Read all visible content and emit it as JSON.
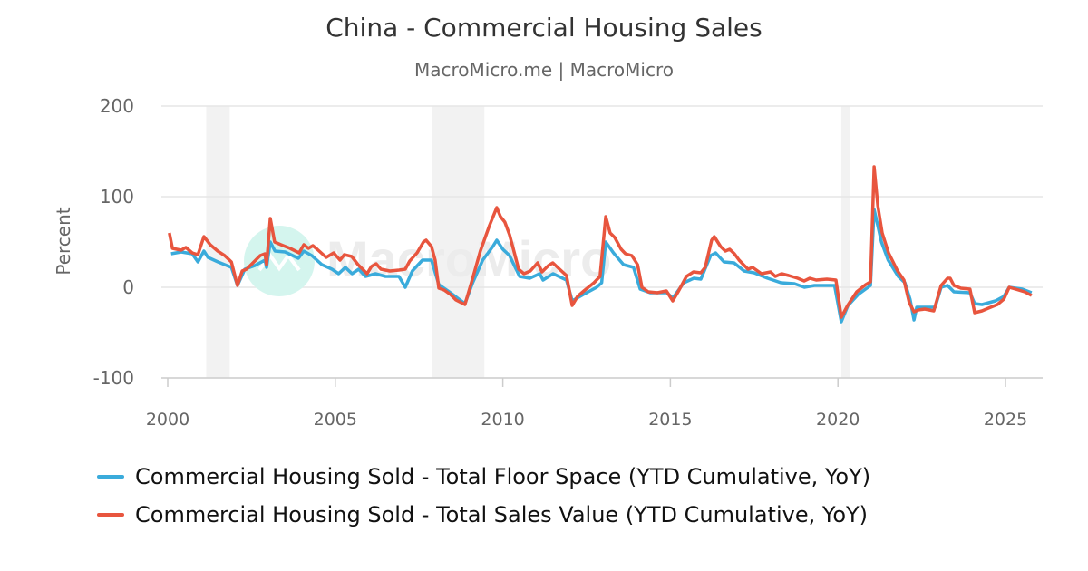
{
  "chart_data": {
    "type": "line",
    "title": "China - Commercial Housing Sales",
    "subtitle": "MacroMicro.me | MacroMicro",
    "ylabel": "Percent",
    "xlabel": "",
    "xlim": [
      2000,
      2026
    ],
    "ylim": [
      -100,
      200
    ],
    "yticks": [
      200,
      100,
      0,
      -100
    ],
    "xticks": [
      2000,
      2005,
      2010,
      2015,
      2020,
      2025
    ],
    "grid": "horizontal",
    "legend_position": "bottom",
    "shaded_periods": [
      [
        2001.15,
        2001.85
      ],
      [
        2007.9,
        2009.45
      ],
      [
        2020.1,
        2020.35
      ]
    ],
    "watermark": "MacroMicro",
    "series": [
      {
        "name": "Commercial Housing Sold - Total Floor Space (YTD Cumulative, YoY)",
        "color": "#3aabdb",
        "points": [
          [
            2000.1,
            37
          ],
          [
            2000.4,
            39
          ],
          [
            2000.73,
            37
          ],
          [
            2000.9,
            28
          ],
          [
            2001.08,
            40
          ],
          [
            2001.2,
            33
          ],
          [
            2001.5,
            28
          ],
          [
            2001.7,
            25
          ],
          [
            2001.9,
            22
          ],
          [
            2002.08,
            2
          ],
          [
            2002.3,
            20
          ],
          [
            2002.6,
            24
          ],
          [
            2002.9,
            30
          ],
          [
            2002.95,
            22
          ],
          [
            2003.06,
            50
          ],
          [
            2003.2,
            40
          ],
          [
            2003.5,
            39
          ],
          [
            2003.9,
            32
          ],
          [
            2004.06,
            40
          ],
          [
            2004.3,
            35
          ],
          [
            2004.6,
            25
          ],
          [
            2004.9,
            20
          ],
          [
            2005.1,
            15
          ],
          [
            2005.3,
            22
          ],
          [
            2005.5,
            15
          ],
          [
            2005.7,
            20
          ],
          [
            2005.9,
            12
          ],
          [
            2006.2,
            15
          ],
          [
            2006.5,
            12
          ],
          [
            2006.9,
            12
          ],
          [
            2007.09,
            0
          ],
          [
            2007.3,
            18
          ],
          [
            2007.6,
            30
          ],
          [
            2007.87,
            30
          ],
          [
            2008.09,
            3
          ],
          [
            2008.4,
            -5
          ],
          [
            2008.87,
            -18
          ],
          [
            2009.1,
            5
          ],
          [
            2009.4,
            30
          ],
          [
            2009.7,
            45
          ],
          [
            2009.82,
            52
          ],
          [
            2010.0,
            42
          ],
          [
            2010.2,
            35
          ],
          [
            2010.5,
            12
          ],
          [
            2010.8,
            10
          ],
          [
            2011.1,
            15
          ],
          [
            2011.2,
            8
          ],
          [
            2011.5,
            15
          ],
          [
            2011.9,
            8
          ],
          [
            2012.07,
            -15
          ],
          [
            2012.4,
            -8
          ],
          [
            2012.8,
            0
          ],
          [
            2012.95,
            5
          ],
          [
            2013.07,
            50
          ],
          [
            2013.3,
            38
          ],
          [
            2013.6,
            25
          ],
          [
            2013.9,
            22
          ],
          [
            2014.1,
            -2
          ],
          [
            2014.4,
            -6
          ],
          [
            2014.9,
            -6
          ],
          [
            2015.07,
            -12
          ],
          [
            2015.4,
            5
          ],
          [
            2015.7,
            10
          ],
          [
            2015.91,
            9
          ],
          [
            2016.2,
            35
          ],
          [
            2016.35,
            38
          ],
          [
            2016.6,
            28
          ],
          [
            2016.9,
            27
          ],
          [
            2017.2,
            18
          ],
          [
            2017.5,
            16
          ],
          [
            2017.9,
            10
          ],
          [
            2018.3,
            5
          ],
          [
            2018.7,
            4
          ],
          [
            2019.0,
            0
          ],
          [
            2019.3,
            2
          ],
          [
            2019.9,
            2
          ],
          [
            2020.1,
            -38
          ],
          [
            2020.3,
            -20
          ],
          [
            2020.6,
            -8
          ],
          [
            2020.97,
            2
          ],
          [
            2021.08,
            86
          ],
          [
            2021.3,
            50
          ],
          [
            2021.5,
            30
          ],
          [
            2021.8,
            12
          ],
          [
            2022.0,
            5
          ],
          [
            2022.15,
            -13
          ],
          [
            2022.27,
            -36
          ],
          [
            2022.35,
            -22
          ],
          [
            2022.5,
            -22
          ],
          [
            2022.9,
            -22
          ],
          [
            2023.08,
            0
          ],
          [
            2023.27,
            2
          ],
          [
            2023.46,
            -5
          ],
          [
            2023.94,
            -6
          ],
          [
            2024.08,
            -18
          ],
          [
            2024.3,
            -19
          ],
          [
            2024.7,
            -15
          ],
          [
            2024.95,
            -10
          ],
          [
            2025.11,
            0
          ],
          [
            2025.5,
            -2
          ],
          [
            2025.78,
            -6
          ]
        ]
      },
      {
        "name": "Commercial Housing Sold - Total Sales Value (YTD Cumulative, YoY)",
        "color": "#e8553e",
        "points": [
          [
            2000.05,
            60
          ],
          [
            2000.14,
            43
          ],
          [
            2000.4,
            41
          ],
          [
            2000.54,
            44
          ],
          [
            2000.73,
            38
          ],
          [
            2000.9,
            36
          ],
          [
            2001.08,
            56
          ],
          [
            2001.27,
            47
          ],
          [
            2001.49,
            40
          ],
          [
            2001.7,
            35
          ],
          [
            2001.9,
            28
          ],
          [
            2002.08,
            2
          ],
          [
            2002.22,
            18
          ],
          [
            2002.35,
            20
          ],
          [
            2002.49,
            25
          ],
          [
            2002.76,
            35
          ],
          [
            2002.9,
            37
          ],
          [
            2002.95,
            25
          ],
          [
            2003.06,
            76
          ],
          [
            2003.19,
            50
          ],
          [
            2003.38,
            47
          ],
          [
            2003.65,
            43
          ],
          [
            2003.92,
            38
          ],
          [
            2004.06,
            47
          ],
          [
            2004.2,
            43
          ],
          [
            2004.33,
            46
          ],
          [
            2004.46,
            42
          ],
          [
            2004.73,
            33
          ],
          [
            2004.95,
            38
          ],
          [
            2005.14,
            30
          ],
          [
            2005.27,
            36
          ],
          [
            2005.49,
            34
          ],
          [
            2005.68,
            25
          ],
          [
            2005.95,
            15
          ],
          [
            2006.08,
            23
          ],
          [
            2006.22,
            26
          ],
          [
            2006.36,
            20
          ],
          [
            2006.63,
            18
          ],
          [
            2006.9,
            19
          ],
          [
            2007.09,
            20
          ],
          [
            2007.22,
            29
          ],
          [
            2007.44,
            38
          ],
          [
            2007.63,
            50
          ],
          [
            2007.71,
            52
          ],
          [
            2007.87,
            45
          ],
          [
            2007.98,
            30
          ],
          [
            2008.09,
            -1
          ],
          [
            2008.25,
            -3
          ],
          [
            2008.44,
            -8
          ],
          [
            2008.6,
            -14
          ],
          [
            2008.87,
            -19
          ],
          [
            2009.06,
            5
          ],
          [
            2009.33,
            40
          ],
          [
            2009.6,
            68
          ],
          [
            2009.82,
            88
          ],
          [
            2009.93,
            78
          ],
          [
            2010.06,
            72
          ],
          [
            2010.2,
            58
          ],
          [
            2010.33,
            40
          ],
          [
            2010.47,
            20
          ],
          [
            2010.63,
            15
          ],
          [
            2010.82,
            18
          ],
          [
            2011.04,
            27
          ],
          [
            2011.17,
            17
          ],
          [
            2011.36,
            24
          ],
          [
            2011.49,
            27
          ],
          [
            2011.69,
            20
          ],
          [
            2011.9,
            13
          ],
          [
            2012.07,
            -20
          ],
          [
            2012.23,
            -10
          ],
          [
            2012.45,
            -3
          ],
          [
            2012.72,
            5
          ],
          [
            2012.9,
            12
          ],
          [
            2013.07,
            78
          ],
          [
            2013.2,
            60
          ],
          [
            2013.34,
            55
          ],
          [
            2013.53,
            42
          ],
          [
            2013.66,
            37
          ],
          [
            2013.85,
            35
          ],
          [
            2014.02,
            25
          ],
          [
            2014.15,
            0
          ],
          [
            2014.34,
            -5
          ],
          [
            2014.61,
            -6
          ],
          [
            2014.88,
            -4
          ],
          [
            2015.07,
            -15
          ],
          [
            2015.23,
            -5
          ],
          [
            2015.48,
            12
          ],
          [
            2015.69,
            17
          ],
          [
            2015.91,
            16
          ],
          [
            2016.04,
            22
          ],
          [
            2016.23,
            52
          ],
          [
            2016.31,
            56
          ],
          [
            2016.5,
            45
          ],
          [
            2016.64,
            40
          ],
          [
            2016.77,
            42
          ],
          [
            2016.91,
            37
          ],
          [
            2017.05,
            30
          ],
          [
            2017.18,
            25
          ],
          [
            2017.32,
            20
          ],
          [
            2017.45,
            22
          ],
          [
            2017.72,
            15
          ],
          [
            2017.99,
            17
          ],
          [
            2018.13,
            12
          ],
          [
            2018.32,
            15
          ],
          [
            2018.53,
            13
          ],
          [
            2018.8,
            10
          ],
          [
            2018.99,
            7
          ],
          [
            2019.16,
            10
          ],
          [
            2019.35,
            8
          ],
          [
            2019.67,
            9
          ],
          [
            2019.94,
            8
          ],
          [
            2020.1,
            -33
          ],
          [
            2020.29,
            -20
          ],
          [
            2020.56,
            -5
          ],
          [
            2020.83,
            3
          ],
          [
            2020.97,
            6
          ],
          [
            2021.08,
            133
          ],
          [
            2021.19,
            90
          ],
          [
            2021.32,
            60
          ],
          [
            2021.51,
            38
          ],
          [
            2021.78,
            18
          ],
          [
            2021.97,
            8
          ],
          [
            2022.13,
            -17
          ],
          [
            2022.27,
            -27
          ],
          [
            2022.4,
            -25
          ],
          [
            2022.59,
            -24
          ],
          [
            2022.86,
            -26
          ],
          [
            2023.08,
            2
          ],
          [
            2023.27,
            10
          ],
          [
            2023.35,
            10
          ],
          [
            2023.46,
            2
          ],
          [
            2023.67,
            -1
          ],
          [
            2023.94,
            -2
          ],
          [
            2024.08,
            -28
          ],
          [
            2024.3,
            -26
          ],
          [
            2024.49,
            -23
          ],
          [
            2024.76,
            -19
          ],
          [
            2024.95,
            -13
          ],
          [
            2025.11,
            0
          ],
          [
            2025.3,
            -2
          ],
          [
            2025.57,
            -5
          ],
          [
            2025.78,
            -9
          ]
        ]
      }
    ]
  }
}
